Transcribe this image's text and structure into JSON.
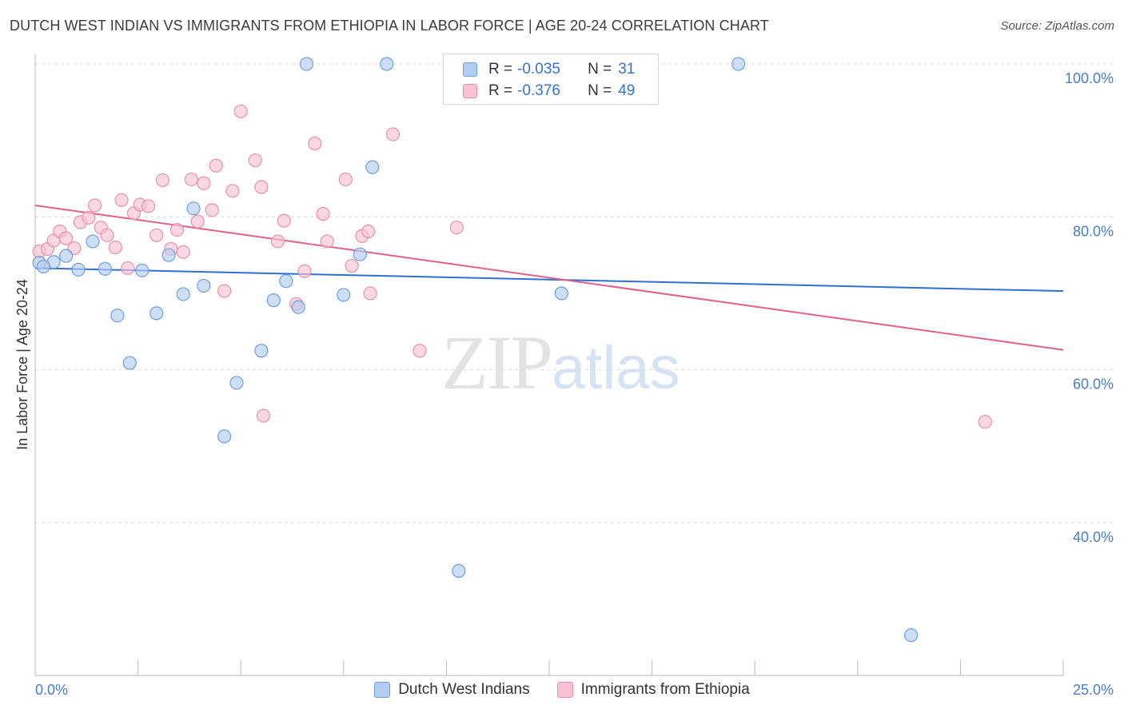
{
  "title": "DUTCH WEST INDIAN VS IMMIGRANTS FROM ETHIOPIA IN LABOR FORCE | AGE 20-24 CORRELATION CHART",
  "source": "Source: ZipAtlas.com",
  "watermark": {
    "zip": "ZIP",
    "atlas": "atlas"
  },
  "legend": {
    "series1": {
      "r_label": "R =",
      "r_value": "-0.035",
      "n_label": "N =",
      "n_value": "31"
    },
    "series2": {
      "r_label": "R =",
      "r_value": "-0.376",
      "n_label": "N =",
      "n_value": "49"
    }
  },
  "colors": {
    "blue_fill": "#b3cdf0",
    "blue_stroke": "#6f9fe0",
    "blue_line": "#2f6fcf",
    "pink_fill": "#f7c3d3",
    "pink_stroke": "#ea8fae",
    "pink_line": "#e0608e",
    "grid": "#dedede",
    "tick_text": "#4a7cc7"
  },
  "chart_data": {
    "type": "scatter",
    "title": "DUTCH WEST INDIAN VS IMMIGRANTS FROM ETHIOPIA IN LABOR FORCE | AGE 20-24 CORRELATION CHART",
    "xlabel": "",
    "ylabel": "In Labor Force | Age 20-24",
    "xlim": [
      0,
      25
    ],
    "ylim": [
      20,
      101
    ],
    "x_tick_labels": [
      "0.0%",
      "25.0%"
    ],
    "y_ticks": [
      40,
      60,
      80,
      100
    ],
    "y_tick_labels": [
      "40.0%",
      "60.0%",
      "80.0%",
      "100.0%"
    ],
    "grid": true,
    "legend_position": "top-center",
    "series": [
      {
        "name": "Dutch West Indians",
        "color": "#b3cdf0",
        "points": [
          [
            0.1,
            74.0
          ],
          [
            0.45,
            74.1
          ],
          [
            0.75,
            74.9
          ],
          [
            1.05,
            73.1
          ],
          [
            1.4,
            76.8
          ],
          [
            1.7,
            73.2
          ],
          [
            2.0,
            67.1
          ],
          [
            2.3,
            60.9
          ],
          [
            2.6,
            73.0
          ],
          [
            2.95,
            67.4
          ],
          [
            3.25,
            75.0
          ],
          [
            3.6,
            69.9
          ],
          [
            3.85,
            81.1
          ],
          [
            4.1,
            71.0
          ],
          [
            4.6,
            51.3
          ],
          [
            4.9,
            58.3
          ],
          [
            5.5,
            62.5
          ],
          [
            5.8,
            69.1
          ],
          [
            6.1,
            71.6
          ],
          [
            6.4,
            68.2
          ],
          [
            6.6,
            100.0
          ],
          [
            7.5,
            69.8
          ],
          [
            7.9,
            75.1
          ],
          [
            8.2,
            86.5
          ],
          [
            8.55,
            100.0
          ],
          [
            10.3,
            33.7
          ],
          [
            12.8,
            70.0
          ],
          [
            13.0,
            100.0
          ],
          [
            17.1,
            100.0
          ],
          [
            21.3,
            25.3
          ],
          [
            0.2,
            73.5
          ]
        ]
      },
      {
        "name": "Immigrants from Ethiopia",
        "color": "#f7c3d3",
        "points": [
          [
            0.1,
            75.5
          ],
          [
            0.3,
            75.8
          ],
          [
            0.45,
            76.9
          ],
          [
            0.6,
            78.1
          ],
          [
            0.75,
            77.2
          ],
          [
            0.95,
            75.9
          ],
          [
            1.1,
            79.3
          ],
          [
            1.3,
            79.9
          ],
          [
            1.45,
            81.5
          ],
          [
            1.6,
            78.6
          ],
          [
            1.75,
            77.6
          ],
          [
            1.95,
            76.0
          ],
          [
            2.1,
            82.2
          ],
          [
            2.25,
            73.3
          ],
          [
            2.4,
            80.5
          ],
          [
            2.55,
            81.6
          ],
          [
            2.75,
            81.4
          ],
          [
            2.95,
            77.6
          ],
          [
            3.1,
            84.8
          ],
          [
            3.3,
            75.8
          ],
          [
            3.45,
            78.3
          ],
          [
            3.6,
            75.4
          ],
          [
            3.8,
            84.9
          ],
          [
            3.95,
            79.4
          ],
          [
            4.1,
            84.4
          ],
          [
            4.3,
            80.9
          ],
          [
            4.4,
            86.7
          ],
          [
            4.6,
            70.3
          ],
          [
            4.8,
            83.4
          ],
          [
            5.0,
            93.8
          ],
          [
            5.35,
            87.4
          ],
          [
            5.5,
            83.9
          ],
          [
            5.55,
            54.0
          ],
          [
            5.9,
            76.8
          ],
          [
            6.05,
            79.5
          ],
          [
            6.35,
            68.6
          ],
          [
            6.55,
            72.9
          ],
          [
            6.8,
            89.6
          ],
          [
            7.0,
            80.4
          ],
          [
            7.1,
            76.8
          ],
          [
            7.55,
            84.9
          ],
          [
            7.7,
            73.6
          ],
          [
            7.95,
            77.5
          ],
          [
            8.1,
            78.1
          ],
          [
            8.15,
            70.0
          ],
          [
            8.7,
            90.8
          ],
          [
            9.35,
            62.5
          ],
          [
            10.25,
            78.6
          ],
          [
            23.1,
            53.2
          ]
        ]
      }
    ],
    "trendlines": [
      {
        "series": "Dutch West Indians",
        "x": [
          0,
          25
        ],
        "y": [
          73.3,
          70.3
        ]
      },
      {
        "series": "Immigrants from Ethiopia",
        "x": [
          0,
          25
        ],
        "y": [
          81.5,
          62.6
        ]
      }
    ]
  }
}
